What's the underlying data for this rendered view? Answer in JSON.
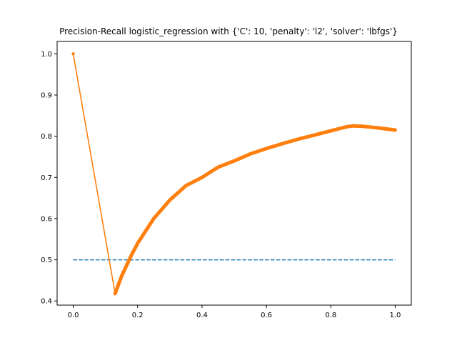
{
  "chart_data": {
    "type": "line",
    "title": "Precision-Recall logistic_regression with {'C': 10, 'penalty': 'l2', 'solver': 'lbfgs'}",
    "xlabel": "",
    "ylabel": "",
    "xlim": [
      -0.05,
      1.05
    ],
    "ylim": [
      0.39,
      1.03
    ],
    "xticks": [
      0.0,
      0.2,
      0.4,
      0.6,
      0.8,
      1.0
    ],
    "xtick_labels": [
      "0.0",
      "0.2",
      "0.4",
      "0.6",
      "0.8",
      "1.0"
    ],
    "yticks": [
      0.4,
      0.5,
      0.6,
      0.7,
      0.8,
      0.9,
      1.0
    ],
    "ytick_labels": [
      "0.4",
      "0.5",
      "0.6",
      "0.7",
      "0.8",
      "0.9",
      "1.0"
    ],
    "grid": false,
    "series": [
      {
        "style": "dashed",
        "color": "#1f77b4",
        "x": [
          0.0,
          1.0
        ],
        "y": [
          0.5,
          0.5
        ]
      },
      {
        "style": "solid-with-markers",
        "color": "#ff7f0e",
        "x": [
          0.0,
          0.13,
          0.15,
          0.18,
          0.2,
          0.25,
          0.3,
          0.35,
          0.4,
          0.45,
          0.5,
          0.55,
          0.6,
          0.65,
          0.7,
          0.75,
          0.8,
          0.85,
          0.87,
          0.9,
          0.95,
          1.0
        ],
        "y": [
          1.0,
          0.418,
          0.46,
          0.51,
          0.54,
          0.6,
          0.645,
          0.68,
          0.7,
          0.725,
          0.74,
          0.757,
          0.77,
          0.782,
          0.793,
          0.803,
          0.813,
          0.823,
          0.825,
          0.824,
          0.82,
          0.815
        ]
      }
    ]
  }
}
